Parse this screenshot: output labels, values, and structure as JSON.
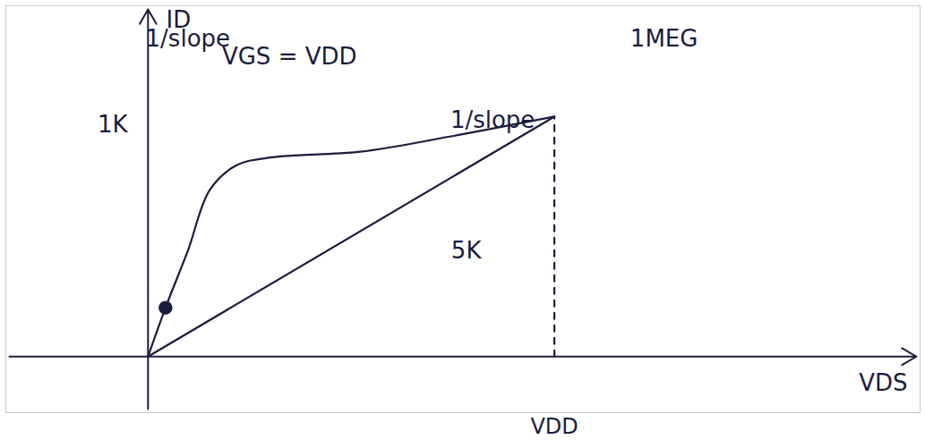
{
  "chart_data": {
    "type": "line",
    "xlabel": "VDS",
    "ylabel": "ID",
    "xlim": [
      -3.5,
      19
    ],
    "ylim": [
      -2,
      12.5
    ],
    "xticks": [
      {
        "value": 10,
        "label": "VDD"
      }
    ],
    "yticks": [],
    "tick_labels": "x",
    "grid": false,
    "color": "#1c1c3c",
    "series": [
      {
        "type": "line",
        "x": [
          0,
          0.43,
          0.98,
          1.52,
          2.17,
          3.04,
          5.22,
          7.39,
          10
        ],
        "values": [
          0,
          1.74,
          3.77,
          5.94,
          6.81,
          7.1,
          7.3,
          7.83,
          8.55
        ]
      },
      {
        "type": "line",
        "x": [
          0,
          10
        ],
        "values": [
          0,
          8.55
        ]
      },
      {
        "type": "line",
        "line_style": "dashed",
        "x": [
          10,
          10
        ],
        "values": [
          0,
          8.55
        ]
      },
      {
        "type": "scatter",
        "marker": "circle",
        "x": [
          0.43
        ],
        "values": [
          1.74
        ]
      }
    ],
    "annotations": [
      {
        "text": "1K",
        "x": -0.87,
        "y": 8.26
      },
      {
        "text": "1/slope",
        "x": 0.98,
        "y": 11.3
      },
      {
        "text": "VGS = VDD",
        "x": 3.48,
        "y": 10.67
      },
      {
        "text": "1MEG",
        "x": 12.7,
        "y": 11.3
      },
      {
        "text": "1/slope",
        "x": 8.48,
        "y": 8.4
      },
      {
        "text": "5K",
        "x": 7.83,
        "y": 3.77
      }
    ]
  }
}
